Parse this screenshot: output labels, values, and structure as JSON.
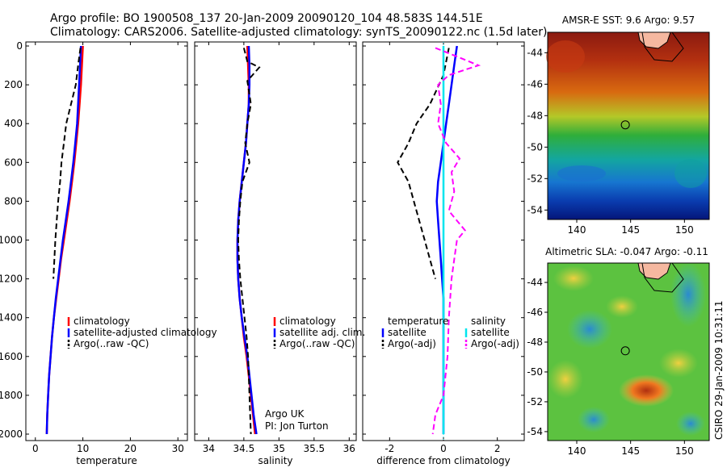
{
  "header": {
    "line1": "Argo profile: BO 1900508_137 20-Jan-2009 20090120_104 48.583S 144.51E",
    "line2": "Climatology: CARS2006. Satellite-adjusted climatology: synTS_20090122.nc (1.5d later)"
  },
  "colors": {
    "climatology": "#ff0000",
    "satellite": "#0000ff",
    "argo": "#000000",
    "sat_salinity": "#00e5ee",
    "argo_salinity_adj": "#ff00ff"
  },
  "credit": {
    "line1": "Argo UK",
    "line2": "PI: Jon Turton"
  },
  "side_label": "CSIRO 29-Jan-2009 10:31:11",
  "chart_data": [
    {
      "type": "line",
      "xlabel": "temperature",
      "ylim": [
        0,
        2050
      ],
      "xlim": [
        -2,
        32
      ],
      "xticks": [
        "0",
        "10",
        "20",
        "30"
      ],
      "yticks": [
        "0",
        "200",
        "400",
        "600",
        "800",
        "1000",
        "1200",
        "1400",
        "1600",
        "1800",
        "2000"
      ],
      "y_reversed": true,
      "legend": [
        "climatology",
        "satellite-adjusted climatology",
        "Argo(..raw -QC)"
      ],
      "series": [
        {
          "name": "climatology",
          "style": "solid",
          "color": "#ff0000",
          "points": [
            [
              10,
              0
            ],
            [
              9.8,
              100
            ],
            [
              9.6,
              200
            ],
            [
              9.3,
              300
            ],
            [
              9,
              400
            ],
            [
              8.6,
              500
            ],
            [
              8.2,
              600
            ],
            [
              7.7,
              700
            ],
            [
              7.2,
              800
            ],
            [
              6.6,
              900
            ],
            [
              6,
              1000
            ],
            [
              5.4,
              1100
            ],
            [
              4.9,
              1200
            ],
            [
              4.4,
              1300
            ],
            [
              3.9,
              1400
            ],
            [
              3.5,
              1500
            ],
            [
              3.2,
              1600
            ],
            [
              2.9,
              1700
            ],
            [
              2.7,
              1800
            ],
            [
              2.5,
              1900
            ],
            [
              2.4,
              2000
            ]
          ]
        },
        {
          "name": "satellite-adjusted climatology",
          "style": "solid",
          "color": "#0000ff",
          "points": [
            [
              9.6,
              0
            ],
            [
              9.4,
              100
            ],
            [
              9.2,
              200
            ],
            [
              9,
              300
            ],
            [
              8.8,
              400
            ],
            [
              8.4,
              500
            ],
            [
              8,
              600
            ],
            [
              7.5,
              700
            ],
            [
              7,
              800
            ],
            [
              6.4,
              900
            ],
            [
              5.8,
              1000
            ],
            [
              5.3,
              1100
            ],
            [
              4.8,
              1200
            ],
            [
              4.3,
              1300
            ],
            [
              3.9,
              1400
            ],
            [
              3.5,
              1500
            ],
            [
              3.2,
              1600
            ],
            [
              2.9,
              1700
            ],
            [
              2.7,
              1800
            ],
            [
              2.5,
              1900
            ],
            [
              2.4,
              2000
            ]
          ]
        },
        {
          "name": "Argo(..raw -QC)",
          "style": "dash",
          "color": "#000000",
          "points": [
            [
              9.5,
              10
            ],
            [
              9,
              100
            ],
            [
              8.5,
              200
            ],
            [
              7.5,
              300
            ],
            [
              6.5,
              400
            ],
            [
              6,
              500
            ],
            [
              5.5,
              600
            ],
            [
              5.2,
              700
            ],
            [
              4.8,
              800
            ],
            [
              4.5,
              900
            ],
            [
              4.2,
              1000
            ],
            [
              4,
              1100
            ],
            [
              3.8,
              1200
            ]
          ]
        }
      ]
    },
    {
      "type": "line",
      "xlabel": "salinity",
      "ylim": [
        0,
        2050
      ],
      "xlim": [
        33.8,
        36.1
      ],
      "xticks": [
        "34",
        "34.5",
        "35",
        "35.5",
        "36"
      ],
      "y_reversed": true,
      "legend": [
        "climatology",
        "satellite adj. clim.",
        "Argo(..raw -QC)"
      ],
      "series": [
        {
          "name": "climatology",
          "style": "solid",
          "color": "#ff0000",
          "points": [
            [
              34.55,
              0
            ],
            [
              34.56,
              100
            ],
            [
              34.57,
              200
            ],
            [
              34.57,
              300
            ],
            [
              34.55,
              400
            ],
            [
              34.53,
              500
            ],
            [
              34.5,
              600
            ],
            [
              34.47,
              700
            ],
            [
              34.44,
              800
            ],
            [
              34.42,
              900
            ],
            [
              34.41,
              1000
            ],
            [
              34.41,
              1100
            ],
            [
              34.42,
              1200
            ],
            [
              34.44,
              1300
            ],
            [
              34.47,
              1400
            ],
            [
              34.5,
              1500
            ],
            [
              34.54,
              1600
            ],
            [
              34.57,
              1700
            ],
            [
              34.6,
              1800
            ],
            [
              34.63,
              1900
            ],
            [
              34.66,
              2000
            ]
          ]
        },
        {
          "name": "satellite adj. clim.",
          "style": "solid",
          "color": "#0000ff",
          "points": [
            [
              34.57,
              0
            ],
            [
              34.58,
              100
            ],
            [
              34.58,
              200
            ],
            [
              34.57,
              300
            ],
            [
              34.55,
              400
            ],
            [
              34.53,
              500
            ],
            [
              34.5,
              600
            ],
            [
              34.47,
              700
            ],
            [
              34.44,
              800
            ],
            [
              34.42,
              900
            ],
            [
              34.41,
              1000
            ],
            [
              34.41,
              1100
            ],
            [
              34.42,
              1200
            ],
            [
              34.44,
              1300
            ],
            [
              34.47,
              1400
            ],
            [
              34.51,
              1500
            ],
            [
              34.55,
              1600
            ],
            [
              34.58,
              1700
            ],
            [
              34.61,
              1800
            ],
            [
              34.64,
              1900
            ],
            [
              34.68,
              2000
            ]
          ]
        },
        {
          "name": "Argo(..raw -QC)",
          "style": "dash",
          "color": "#000000",
          "points": [
            [
              34.5,
              10
            ],
            [
              34.55,
              80
            ],
            [
              34.72,
              110
            ],
            [
              34.55,
              180
            ],
            [
              34.6,
              300
            ],
            [
              34.55,
              400
            ],
            [
              34.52,
              500
            ],
            [
              34.58,
              600
            ],
            [
              34.48,
              700
            ],
            [
              34.45,
              800
            ],
            [
              34.43,
              900
            ],
            [
              34.42,
              1000
            ],
            [
              34.43,
              1100
            ],
            [
              34.45,
              1200
            ],
            [
              34.48,
              1300
            ],
            [
              34.51,
              1400
            ],
            [
              34.54,
              1500
            ],
            [
              34.56,
              1600
            ],
            [
              34.57,
              1700
            ],
            [
              34.58,
              1800
            ],
            [
              34.59,
              1900
            ],
            [
              34.6,
              2000
            ]
          ]
        }
      ]
    },
    {
      "type": "line",
      "xlabel": "difference from climatology",
      "ylim": [
        0,
        2050
      ],
      "xlim": [
        -3,
        3
      ],
      "xticks": [
        "-2",
        "0",
        "2"
      ],
      "y_reversed": true,
      "legend": [
        "temperature",
        "satellite",
        "Argo(-adj)",
        "salinity",
        "satellite",
        "Argo(-adj)"
      ],
      "series": [
        {
          "name": "temperature satellite",
          "style": "solid",
          "color": "#0000ff",
          "points": [
            [
              0.5,
              0
            ],
            [
              0.4,
              100
            ],
            [
              0.3,
              200
            ],
            [
              0.2,
              300
            ],
            [
              0.1,
              400
            ],
            [
              0,
              500
            ],
            [
              -0.1,
              600
            ],
            [
              -0.2,
              700
            ],
            [
              -0.25,
              800
            ],
            [
              -0.2,
              900
            ],
            [
              -0.15,
              1000
            ],
            [
              -0.1,
              1100
            ],
            [
              -0.05,
              1200
            ],
            [
              0,
              1300
            ],
            [
              0,
              1400
            ],
            [
              0,
              1600
            ],
            [
              0,
              1800
            ],
            [
              0,
              2000
            ]
          ]
        },
        {
          "name": "temperature Argo(-adj)",
          "style": "dash",
          "color": "#000000",
          "points": [
            [
              0.2,
              10
            ],
            [
              0,
              150
            ],
            [
              -0.5,
              300
            ],
            [
              -1,
              400
            ],
            [
              -1.3,
              500
            ],
            [
              -1.7,
              600
            ],
            [
              -1.3,
              700
            ],
            [
              -1.1,
              800
            ],
            [
              -0.9,
              900
            ],
            [
              -0.7,
              1000
            ],
            [
              -0.5,
              1100
            ],
            [
              -0.3,
              1200
            ]
          ]
        },
        {
          "name": "salinity satellite",
          "style": "solid",
          "color": "#00e5ee",
          "points": [
            [
              0,
              0
            ],
            [
              0,
              500
            ],
            [
              0,
              1000
            ],
            [
              0,
              1500
            ],
            [
              0,
              2000
            ]
          ]
        },
        {
          "name": "salinity Argo(-adj)",
          "style": "dash",
          "color": "#ff00ff",
          "points": [
            [
              -0.3,
              10
            ],
            [
              0.6,
              60
            ],
            [
              1.3,
              100
            ],
            [
              0.2,
              150
            ],
            [
              -0.2,
              200
            ],
            [
              -0.1,
              300
            ],
            [
              -0.2,
              400
            ],
            [
              0.1,
              500
            ],
            [
              0.6,
              580
            ],
            [
              0.3,
              650
            ],
            [
              0.4,
              750
            ],
            [
              0.2,
              850
            ],
            [
              0.8,
              950
            ],
            [
              0.5,
              1000
            ],
            [
              0.4,
              1100
            ],
            [
              0.3,
              1200
            ],
            [
              0.2,
              1400
            ],
            [
              0.15,
              1600
            ],
            [
              0,
              1800
            ],
            [
              -0.3,
              1900
            ],
            [
              -0.4,
              2000
            ]
          ]
        }
      ]
    },
    {
      "type": "heatmap",
      "title": "AMSR-E SST: 9.6 Argo: 9.57",
      "xticks": [
        "140",
        "145",
        "150"
      ],
      "yticks": [
        "-44",
        "-46",
        "-48",
        "-50",
        "-52",
        "-54"
      ],
      "marker": {
        "lon": 144.51,
        "lat": -48.583
      }
    },
    {
      "type": "heatmap",
      "title": "Altimetric SLA: -0.047 Argo: -0.11",
      "xticks": [
        "140",
        "145",
        "150"
      ],
      "yticks": [
        "-44",
        "-46",
        "-48",
        "-50",
        "-52",
        "-54"
      ],
      "marker": {
        "lon": 144.51,
        "lat": -48.583
      }
    }
  ]
}
